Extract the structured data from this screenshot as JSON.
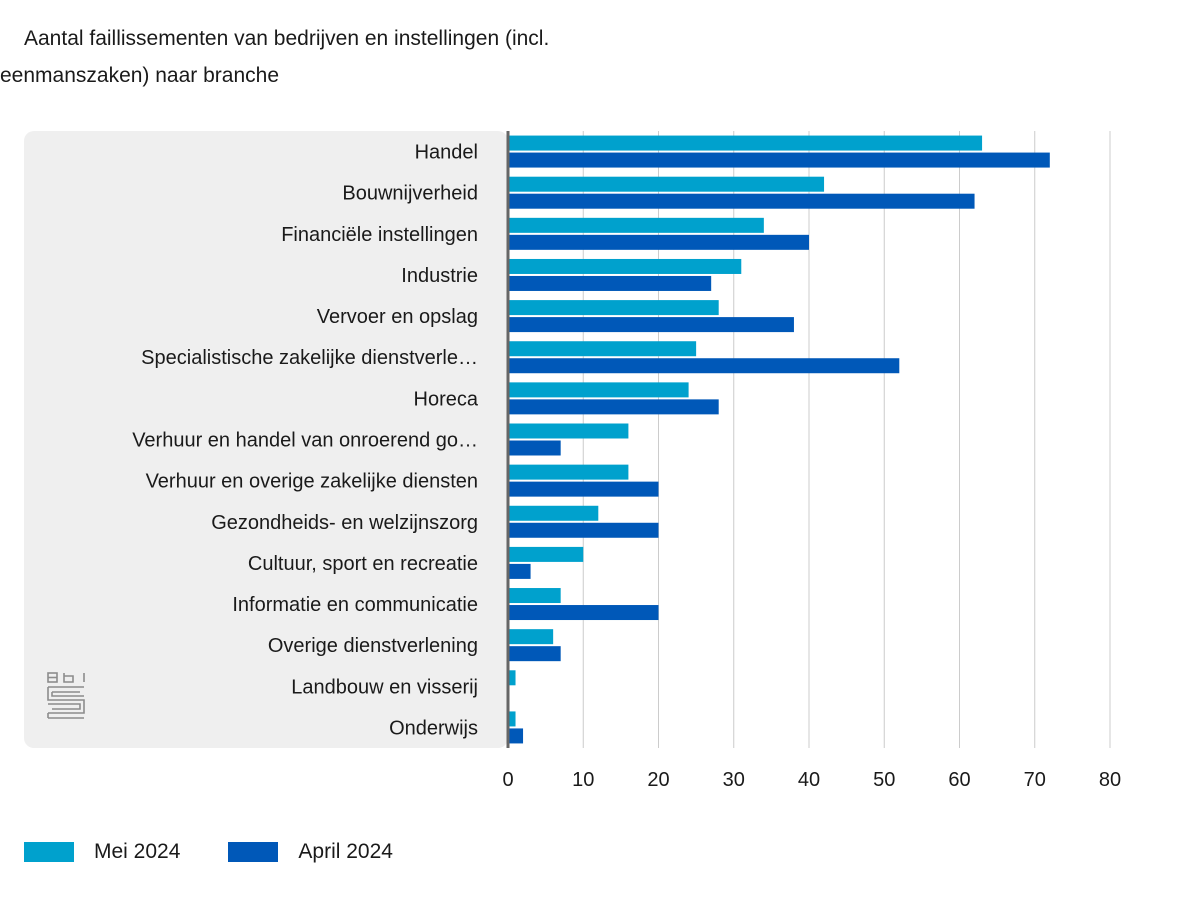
{
  "chart_data": {
    "type": "bar",
    "orientation": "horizontal",
    "title": "Aantal faillissementen van bedrijven en instellingen (incl. eenmanszaken) naar branche",
    "xlabel": "",
    "ylabel": "",
    "xlim": [
      0,
      80
    ],
    "x_ticks": [
      "0",
      "10",
      "20",
      "30",
      "40",
      "50",
      "60",
      "70",
      "80"
    ],
    "grid": "vertical",
    "legend_position": "bottom-left",
    "categories": [
      "Handel",
      "Bouwnijverheid",
      "Financiële instellingen",
      "Industrie",
      "Vervoer en opslag",
      "Specialistische zakelijke dienstverle…",
      "Horeca",
      "Verhuur en handel van onroerend go…",
      "Verhuur en overige zakelijke diensten",
      "Gezondheids- en welzijnszorg",
      "Cultuur, sport en recreatie",
      "Informatie en communicatie",
      "Overige dienstverlening",
      "Landbouw en visserij",
      "Onderwijs"
    ],
    "series": [
      {
        "name": "Mei 2024",
        "color": "#00a1cd",
        "values": [
          63,
          42,
          34,
          31,
          28,
          25,
          24,
          16,
          16,
          12,
          10,
          7,
          6,
          1,
          1
        ]
      },
      {
        "name": "April 2024",
        "color": "#0058b8",
        "values": [
          72,
          62,
          40,
          27,
          38,
          52,
          28,
          7,
          20,
          20,
          3,
          20,
          7,
          0,
          2
        ]
      }
    ]
  },
  "brand": {
    "logo_icon": "cbs-logo-icon",
    "panel_color": "#efefef",
    "gridline_color": "#cccccc",
    "axis_color": "#666666"
  }
}
